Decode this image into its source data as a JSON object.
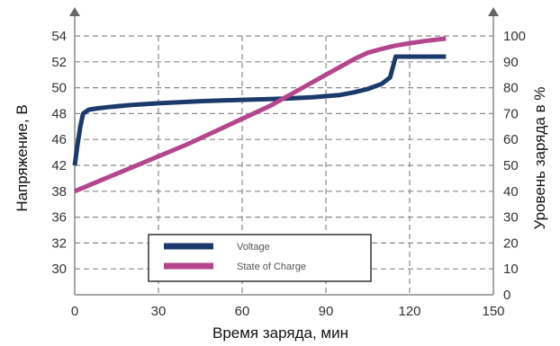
{
  "chart_data": {
    "type": "line",
    "xlabel": "Время заряда, мин",
    "ylabel_left": "Напряжение, В",
    "ylabel_right": "Уровень заряда в %",
    "x_ticks": [
      0,
      30,
      60,
      90,
      120,
      150
    ],
    "xlim": [
      0,
      150
    ],
    "y_left_ticks": [
      30,
      32,
      36,
      38,
      42,
      46,
      48,
      50,
      52,
      54
    ],
    "y_right_ticks": [
      0,
      10,
      20,
      30,
      40,
      50,
      60,
      70,
      80,
      90,
      100
    ],
    "ylim_right": [
      0,
      100
    ],
    "grid": true,
    "legend_position": "bottom-center",
    "series": [
      {
        "name": "Voltage",
        "axis": "left",
        "color": "#1b3a6b",
        "x": [
          0,
          1,
          2,
          3,
          5,
          8,
          12,
          20,
          30,
          45,
          60,
          75,
          85,
          95,
          100,
          105,
          110,
          113,
          115,
          120,
          125,
          133
        ],
        "y_right_units": [
          50,
          58,
          65,
          70,
          71.5,
          72,
          72.5,
          73.3,
          74,
          74.8,
          75.3,
          75.8,
          76.3,
          77.2,
          78.2,
          79.5,
          81.5,
          84,
          92,
          92,
          92,
          92
        ]
      },
      {
        "name": "State of Charge",
        "axis": "right",
        "color": "#b5458c",
        "x": [
          0,
          10,
          20,
          30,
          40,
          50,
          60,
          70,
          80,
          90,
          95,
          100,
          105,
          110,
          115,
          120,
          125,
          133
        ],
        "y": [
          40,
          44.5,
          49,
          53.5,
          58,
          63,
          68,
          73,
          79,
          85,
          88,
          91,
          93.5,
          95,
          96.3,
          97.2,
          98,
          99
        ]
      }
    ]
  }
}
